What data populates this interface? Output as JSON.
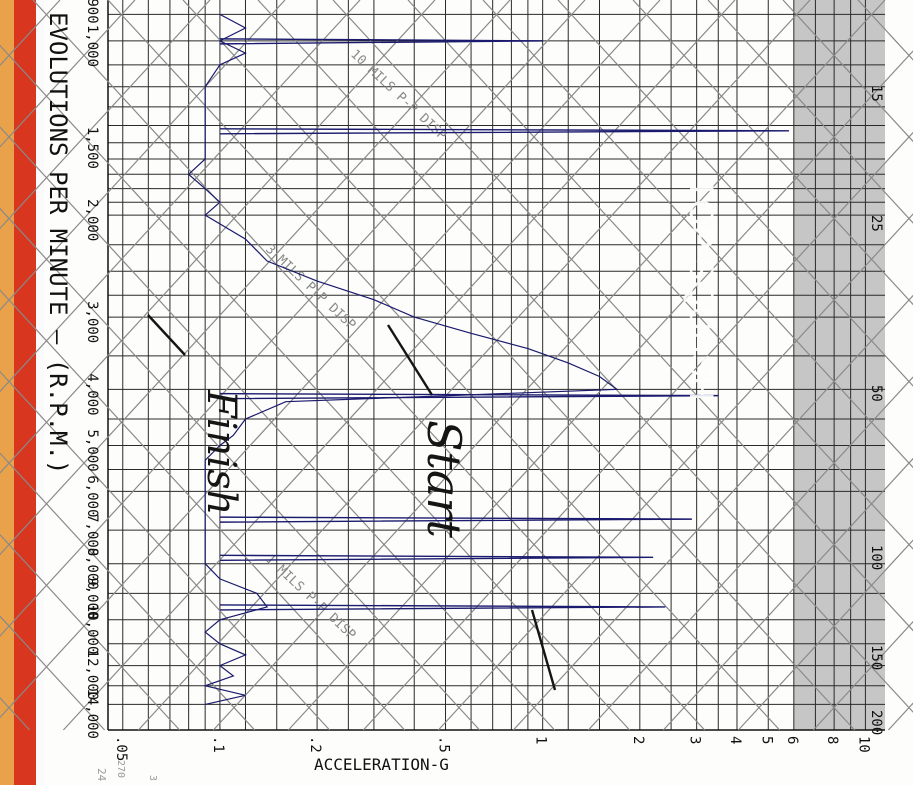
{
  "chart_data": {
    "type": "line",
    "chart_kind": "vibration spectrum on vibration nomograph (log scales)",
    "title": "",
    "xlabel": "REVOLUTIONS PER MINUTE – (R.P.M.)",
    "ylabel": "ACCELERATION-G",
    "x_scale": "log",
    "y_scale": "log",
    "rpm_tick_labels": [
      "900",
      "1,000",
      "1,500",
      "2,000",
      "3,000",
      "4,000",
      "5,000",
      "6,000",
      "7,000",
      "8,000",
      "9,000",
      "10,000",
      "12,000",
      "14,000"
    ],
    "rpm_tick_values": [
      900,
      1000,
      1500,
      2000,
      3000,
      4000,
      5000,
      6000,
      7000,
      8000,
      9000,
      10000,
      12000,
      14000
    ],
    "accel_tick_labels": [
      ".05",
      ".1",
      ".2",
      ".5",
      "1",
      "2",
      "3",
      "4",
      "5",
      "6",
      "8",
      "10"
    ],
    "accel_tick_values": [
      0.05,
      0.1,
      0.2,
      0.5,
      1,
      2,
      3,
      4,
      5,
      6,
      8,
      10
    ],
    "velocity_tick_labels": [
      "15",
      "25",
      "50",
      "100",
      "150",
      "200"
    ],
    "displacement_lines": [
      {
        "label": "10 MILS P-P DISP",
        "mils": 10
      },
      {
        "label": "3 MILS P-P DISP",
        "mils": 3
      },
      {
        "label": "1 MILS P-P DISP",
        "mils": 1
      }
    ],
    "shaded_region": {
      "label": "TOP SQUASH",
      "accel_from": 6
    },
    "series": [
      {
        "x": [
          900,
          950,
          1000,
          1050,
          1100,
          1200,
          1300,
          1400,
          1500,
          1600,
          1700,
          1800,
          1900,
          2000,
          2200,
          2400,
          2600,
          2800,
          3000,
          3200,
          3400,
          3600,
          3800,
          4000,
          4200,
          4500,
          4800,
          5000,
          5300,
          5600,
          6000,
          6300,
          6600,
          7000,
          7300,
          7600,
          8000,
          8500,
          9000,
          9500,
          10000,
          10500,
          11000,
          11500,
          12000,
          12500,
          13000,
          13500,
          14000
        ],
        "values": [
          0.1,
          0.12,
          0.1,
          0.12,
          0.1,
          0.09,
          0.09,
          0.09,
          0.09,
          0.09,
          0.08,
          0.09,
          0.1,
          0.09,
          0.12,
          0.14,
          0.2,
          0.3,
          0.4,
          0.6,
          0.9,
          1.2,
          1.5,
          1.7,
          0.16,
          0.12,
          0.11,
          0.1,
          0.09,
          0.09,
          0.09,
          0.09,
          0.09,
          0.09,
          0.09,
          0.09,
          0.09,
          0.1,
          0.13,
          0.14,
          0.1,
          0.09,
          0.1,
          0.12,
          0.1,
          0.11,
          0.09,
          0.12,
          0.09
        ]
      }
    ],
    "peaks": [
      {
        "rpm": 1000,
        "accel": 1.0
      },
      {
        "rpm": 1430,
        "accel": 5.8
      },
      {
        "rpm": 4100,
        "accel": 3.5
      },
      {
        "rpm": 6700,
        "accel": 2.9
      },
      {
        "rpm": 7800,
        "accel": 2.2
      },
      {
        "rpm": 9500,
        "accel": 2.4
      }
    ],
    "annotations": {
      "handwritten_start": "Start",
      "handwritten_finish": "Finish"
    },
    "grid": true,
    "colors": {
      "trace": "#1a1a6e",
      "grid": "#2a2a2a",
      "shade": "#c4c4c4",
      "diagonal": "#8a8a8a",
      "frame": "#d8361f"
    }
  },
  "labels": {
    "x_axis_title": "EVOLUTIONS PER MINUTE  –  (R.P.M.)",
    "x_axis_cut": "R",
    "y_axis_title": "ACCELERATION-G",
    "shaded_title": "TOP SQUASH",
    "stray_24": "24",
    "stray_270": "270",
    "stray_3": "3"
  }
}
